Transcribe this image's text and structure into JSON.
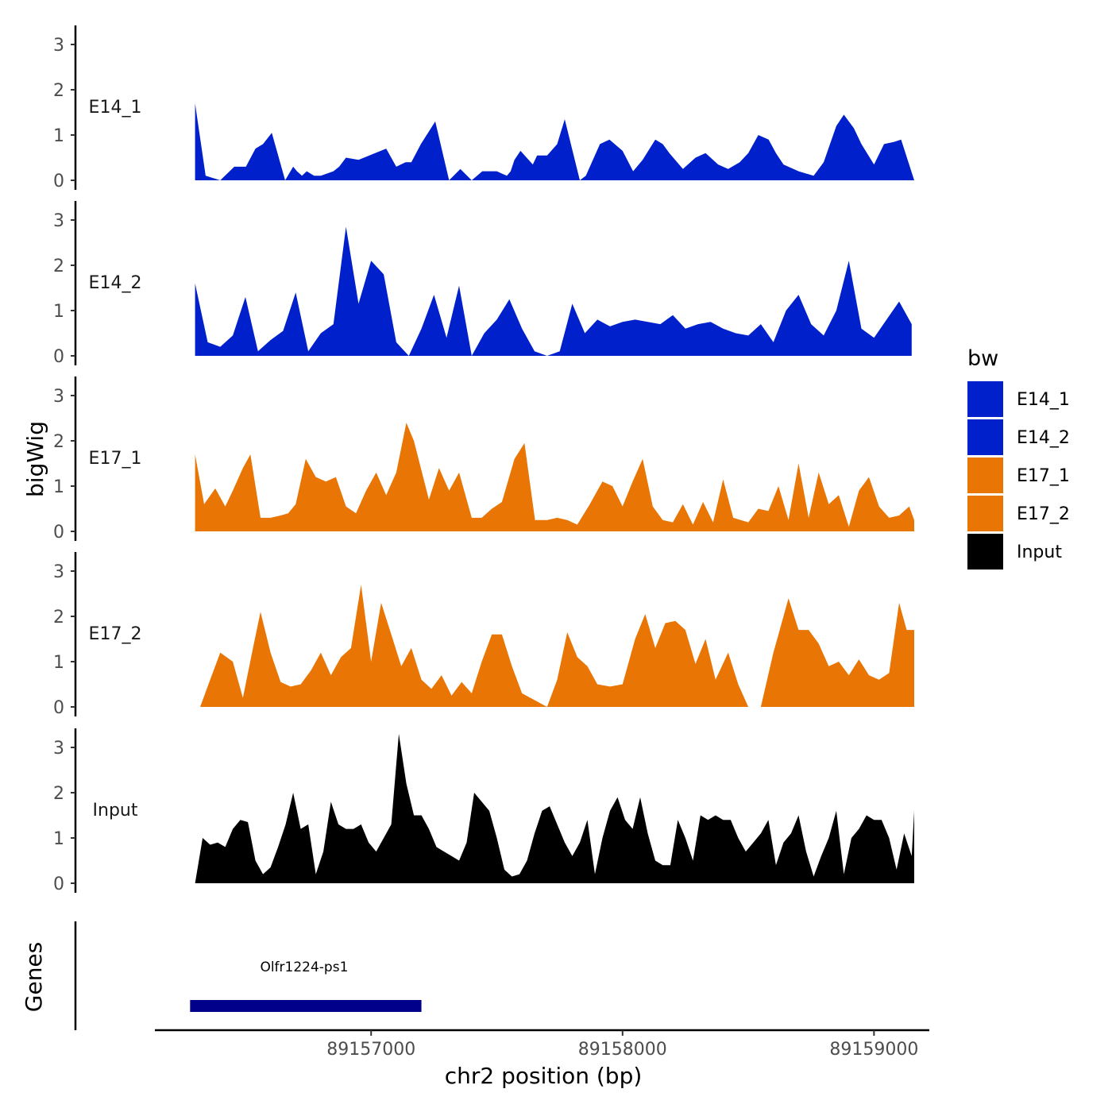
{
  "chart_data": {
    "type": "area",
    "title": "",
    "ylabel": "bigWig",
    "xlabel": "chr2 position (bp)",
    "xlim": [
      89156140,
      89159220
    ],
    "ylim": [
      0,
      3.4
    ],
    "y_ticks": [
      0,
      1,
      2,
      3
    ],
    "x_ticks": [
      89157000,
      89158000,
      89159000
    ],
    "x_tick_labels": [
      "89157000",
      "89158000",
      "89159000"
    ],
    "grid": false,
    "legend": {
      "title": "bw",
      "position": "right",
      "entries": [
        {
          "label": "E14_1",
          "color": "#0020CC"
        },
        {
          "label": "E14_2",
          "color": "#0020CC"
        },
        {
          "label": "E17_1",
          "color": "#E87504"
        },
        {
          "label": "E17_2",
          "color": "#E87504"
        },
        {
          "label": "Input",
          "color": "#000000"
        }
      ]
    },
    "series": [
      {
        "name": "E14_1",
        "color": "#0020CC",
        "x": [
          89156300,
          89156342,
          89156400,
          89156456,
          89156502,
          89156540,
          89156570,
          89156605,
          89156658,
          89156690,
          89156705,
          89156725,
          89156744,
          89156773,
          89156800,
          89156850,
          89156873,
          89156900,
          89156950,
          89157060,
          89157100,
          89157137,
          89157160,
          89157198,
          89157255,
          89157310,
          89157355,
          89157400,
          89157442,
          89157500,
          89157540,
          89157555,
          89157570,
          89157594,
          89157643,
          89157660,
          89157700,
          89157740,
          89157770,
          89157830,
          89157854,
          89157910,
          89157948,
          89158000,
          89158042,
          89158080,
          89158130,
          89158160,
          89158186,
          89158240,
          89158290,
          89158330,
          89158380,
          89158420,
          89158466,
          89158500,
          89158540,
          89158581,
          89158610,
          89158640,
          89158700,
          89158760,
          89158800,
          89158850,
          89158880,
          89158920,
          89158950,
          89159000,
          89159040,
          89159080,
          89159108,
          89159160
        ],
        "y": [
          1.7,
          0.1,
          0.0,
          0.3,
          0.3,
          0.7,
          0.8,
          1.05,
          0.0,
          0.3,
          0.2,
          0.1,
          0.2,
          0.1,
          0.1,
          0.2,
          0.3,
          0.5,
          0.45,
          0.7,
          0.3,
          0.4,
          0.4,
          0.8,
          1.3,
          0.0,
          0.25,
          0.0,
          0.2,
          0.2,
          0.1,
          0.2,
          0.45,
          0.65,
          0.35,
          0.55,
          0.55,
          0.8,
          1.35,
          0.0,
          0.1,
          0.8,
          0.9,
          0.65,
          0.2,
          0.45,
          0.9,
          0.8,
          0.6,
          0.25,
          0.5,
          0.6,
          0.35,
          0.25,
          0.4,
          0.6,
          1.0,
          0.9,
          0.6,
          0.35,
          0.2,
          0.1,
          0.4,
          1.2,
          1.45,
          1.15,
          0.8,
          0.35,
          0.8,
          0.85,
          0.9,
          0.0
        ],
        "regions": []
      },
      {
        "name": "E14_2",
        "color": "#0020CC",
        "x": [
          89156300,
          89156350,
          89156400,
          89156450,
          89156500,
          89156550,
          89156600,
          89156650,
          89156700,
          89156750,
          89156800,
          89156850,
          89156900,
          89156950,
          89157000,
          89157050,
          89157100,
          89157150,
          89157200,
          89157250,
          89157300,
          89157350,
          89157400,
          89157450,
          89157500,
          89157550,
          89157600,
          89157650,
          89157700,
          89157750,
          89157800,
          89157850,
          89157900,
          89157950,
          89158000,
          89158050,
          89158100,
          89158150,
          89158200,
          89158250,
          89158300,
          89158350,
          89158400,
          89158450,
          89158500,
          89158550,
          89158600,
          89158650,
          89158700,
          89158750,
          89158800,
          89158850,
          89158900,
          89158950,
          89159000,
          89159050,
          89159100,
          89159150
        ],
        "y": [
          1.6,
          0.3,
          0.2,
          0.45,
          1.3,
          0.1,
          0.35,
          0.55,
          1.4,
          0.1,
          0.5,
          0.7,
          2.85,
          1.15,
          2.1,
          1.8,
          0.3,
          0.0,
          0.6,
          1.35,
          0.4,
          1.55,
          0.0,
          0.5,
          0.8,
          1.25,
          0.6,
          0.1,
          0.0,
          0.1,
          1.15,
          0.5,
          0.8,
          0.65,
          0.75,
          0.8,
          0.75,
          0.7,
          0.9,
          0.6,
          0.7,
          0.75,
          0.6,
          0.5,
          0.45,
          0.7,
          0.3,
          1.0,
          1.35,
          0.7,
          0.45,
          1.0,
          2.1,
          0.6,
          0.4,
          0.8,
          1.2,
          0.7
        ],
        "regions": []
      },
      {
        "name": "E17_1",
        "color": "#E87504",
        "x": [
          89156300,
          89156336,
          89156380,
          89156420,
          89156450,
          89156490,
          89156520,
          89156560,
          89156600,
          89156640,
          89156670,
          89156700,
          89156740,
          89156780,
          89156820,
          89156860,
          89156900,
          89156940,
          89156980,
          89157020,
          89157060,
          89157100,
          89157140,
          89157170,
          89157230,
          89157270,
          89157310,
          89157350,
          89157400,
          89157440,
          89157480,
          89157520,
          89157570,
          89157610,
          89157652,
          89157700,
          89157740,
          89157780,
          89157820,
          89157870,
          89157920,
          89157960,
          89158000,
          89158040,
          89158080,
          89158120,
          89158160,
          89158200,
          89158240,
          89158280,
          89158320,
          89158360,
          89158400,
          89158440,
          89158500,
          89158540,
          89158580,
          89158620,
          89158660,
          89158700,
          89158740,
          89158780,
          89158820,
          89158860,
          89158900,
          89158940,
          89158980,
          89159020,
          89159060,
          89159100,
          89159140,
          89159160
        ],
        "y": [
          1.7,
          0.6,
          0.95,
          0.55,
          0.9,
          1.4,
          1.7,
          0.3,
          0.3,
          0.35,
          0.4,
          0.6,
          1.6,
          1.2,
          1.1,
          1.2,
          0.55,
          0.4,
          0.9,
          1.3,
          0.8,
          1.3,
          2.4,
          2.0,
          0.7,
          1.4,
          0.9,
          1.3,
          0.3,
          0.3,
          0.5,
          0.65,
          1.6,
          1.95,
          0.25,
          0.25,
          0.3,
          0.25,
          0.15,
          0.6,
          1.1,
          1.0,
          0.55,
          1.1,
          1.6,
          0.55,
          0.25,
          0.2,
          0.6,
          0.15,
          0.65,
          0.2,
          1.15,
          0.3,
          0.2,
          0.5,
          0.45,
          1.0,
          0.25,
          1.5,
          0.3,
          1.3,
          0.6,
          0.8,
          0.1,
          0.9,
          1.2,
          0.55,
          0.3,
          0.35,
          0.55,
          0.25
        ],
        "regions": []
      },
      {
        "name": "E17_2",
        "color": "#E87504",
        "x": [
          89156320,
          89156360,
          89156400,
          89156450,
          89156490,
          89156530,
          89156560,
          89156600,
          89156640,
          89156680,
          89156720,
          89156760,
          89156800,
          89156840,
          89156880,
          89156920,
          89156960,
          89157000,
          89157040,
          89157080,
          89157120,
          89157160,
          89157200,
          89157240,
          89157280,
          89157320,
          89157360,
          89157400,
          89157440,
          89157480,
          89157520,
          89157560,
          89157600,
          89157700,
          89157740,
          89157780,
          89157820,
          89157860,
          89157900,
          89157950,
          89158000,
          89158050,
          89158090,
          89158130,
          89158170,
          89158210,
          89158250,
          89158290,
          89158330,
          89158370,
          89158420,
          89158460,
          89158500,
          89158550,
          89158600,
          89158620,
          89158660,
          89158700,
          89158740,
          89158780,
          89158820,
          89158860,
          89158900,
          89158940,
          89158980,
          89159020,
          89159060,
          89159100,
          89159130,
          89159160
        ],
        "y": [
          0.0,
          0.6,
          1.2,
          1.0,
          0.2,
          1.3,
          2.1,
          1.2,
          0.55,
          0.45,
          0.5,
          0.8,
          1.2,
          0.7,
          1.1,
          1.3,
          2.7,
          1.0,
          2.3,
          1.6,
          0.9,
          1.3,
          0.6,
          0.4,
          0.7,
          0.25,
          0.55,
          0.3,
          1.0,
          1.6,
          1.6,
          0.9,
          0.3,
          0.0,
          0.6,
          1.65,
          1.1,
          0.9,
          0.5,
          0.45,
          0.5,
          1.5,
          2.05,
          1.3,
          1.85,
          1.9,
          1.7,
          0.95,
          1.5,
          0.6,
          1.2,
          0.5,
          0.0,
          0.0,
          1.2,
          1.6,
          2.4,
          1.7,
          1.7,
          1.4,
          0.9,
          1.0,
          0.7,
          1.05,
          0.7,
          0.6,
          0.75,
          2.3,
          1.7,
          1.7
        ],
        "regions": []
      },
      {
        "name": "Input",
        "color": "#000000",
        "x": [
          89156300,
          89156330,
          89156360,
          89156390,
          89156420,
          89156450,
          89156480,
          89156510,
          89156540,
          89156570,
          89156600,
          89156630,
          89156660,
          89156690,
          89156720,
          89156750,
          89156780,
          89156810,
          89156840,
          89156870,
          89156900,
          89156930,
          89156960,
          89156990,
          89157020,
          89157050,
          89157080,
          89157110,
          89157140,
          89157170,
          89157200,
          89157230,
          89157260,
          89157290,
          89157320,
          89157350,
          89157380,
          89157410,
          89157440,
          89157470,
          89157500,
          89157530,
          89157560,
          89157590,
          89157620,
          89157650,
          89157680,
          89157710,
          89157740,
          89157770,
          89157800,
          89157830,
          89157860,
          89157890,
          89157920,
          89157950,
          89157980,
          89158010,
          89158040,
          89158070,
          89158100,
          89158130,
          89158160,
          89158190,
          89158220,
          89158250,
          89158280,
          89158310,
          89158340,
          89158370,
          89158400,
          89158430,
          89158460,
          89158490,
          89158520,
          89158550,
          89158580,
          89158610,
          89158640,
          89158670,
          89158700,
          89158730,
          89158760,
          89158790,
          89158820,
          89158850,
          89158880,
          89158910,
          89158940,
          89158970,
          89159000,
          89159030,
          89159060,
          89159090,
          89159120,
          89159150,
          89159160
        ],
        "y": [
          0.0,
          1.0,
          0.85,
          0.9,
          0.8,
          1.2,
          1.4,
          1.35,
          0.5,
          0.2,
          0.35,
          0.8,
          1.3,
          2.0,
          1.2,
          1.3,
          0.2,
          0.7,
          1.8,
          1.3,
          1.2,
          1.2,
          1.3,
          0.9,
          0.7,
          1.0,
          1.3,
          3.3,
          2.2,
          1.5,
          1.5,
          1.2,
          0.8,
          0.7,
          0.6,
          0.5,
          0.9,
          2.0,
          1.8,
          1.6,
          1.0,
          0.3,
          0.15,
          0.2,
          0.5,
          1.1,
          1.6,
          1.7,
          1.3,
          0.9,
          0.6,
          0.9,
          1.4,
          0.2,
          1.0,
          1.6,
          1.9,
          1.4,
          1.2,
          1.9,
          1.1,
          0.5,
          0.4,
          0.4,
          1.4,
          1.0,
          0.5,
          1.5,
          1.4,
          1.5,
          1.4,
          1.4,
          1.0,
          0.7,
          0.9,
          1.1,
          1.4,
          0.4,
          0.9,
          1.1,
          1.5,
          0.7,
          0.15,
          0.6,
          1.0,
          1.6,
          0.2,
          1.0,
          1.2,
          1.5,
          1.4,
          1.4,
          1.0,
          0.3,
          1.1,
          0.6,
          1.6
        ],
        "regions": []
      }
    ],
    "genes": [
      {
        "name": "Olfr1224-ps1",
        "start": 89156280,
        "end": 89157200,
        "color": "#00008B"
      }
    ],
    "genes_panel_label": "Genes"
  }
}
